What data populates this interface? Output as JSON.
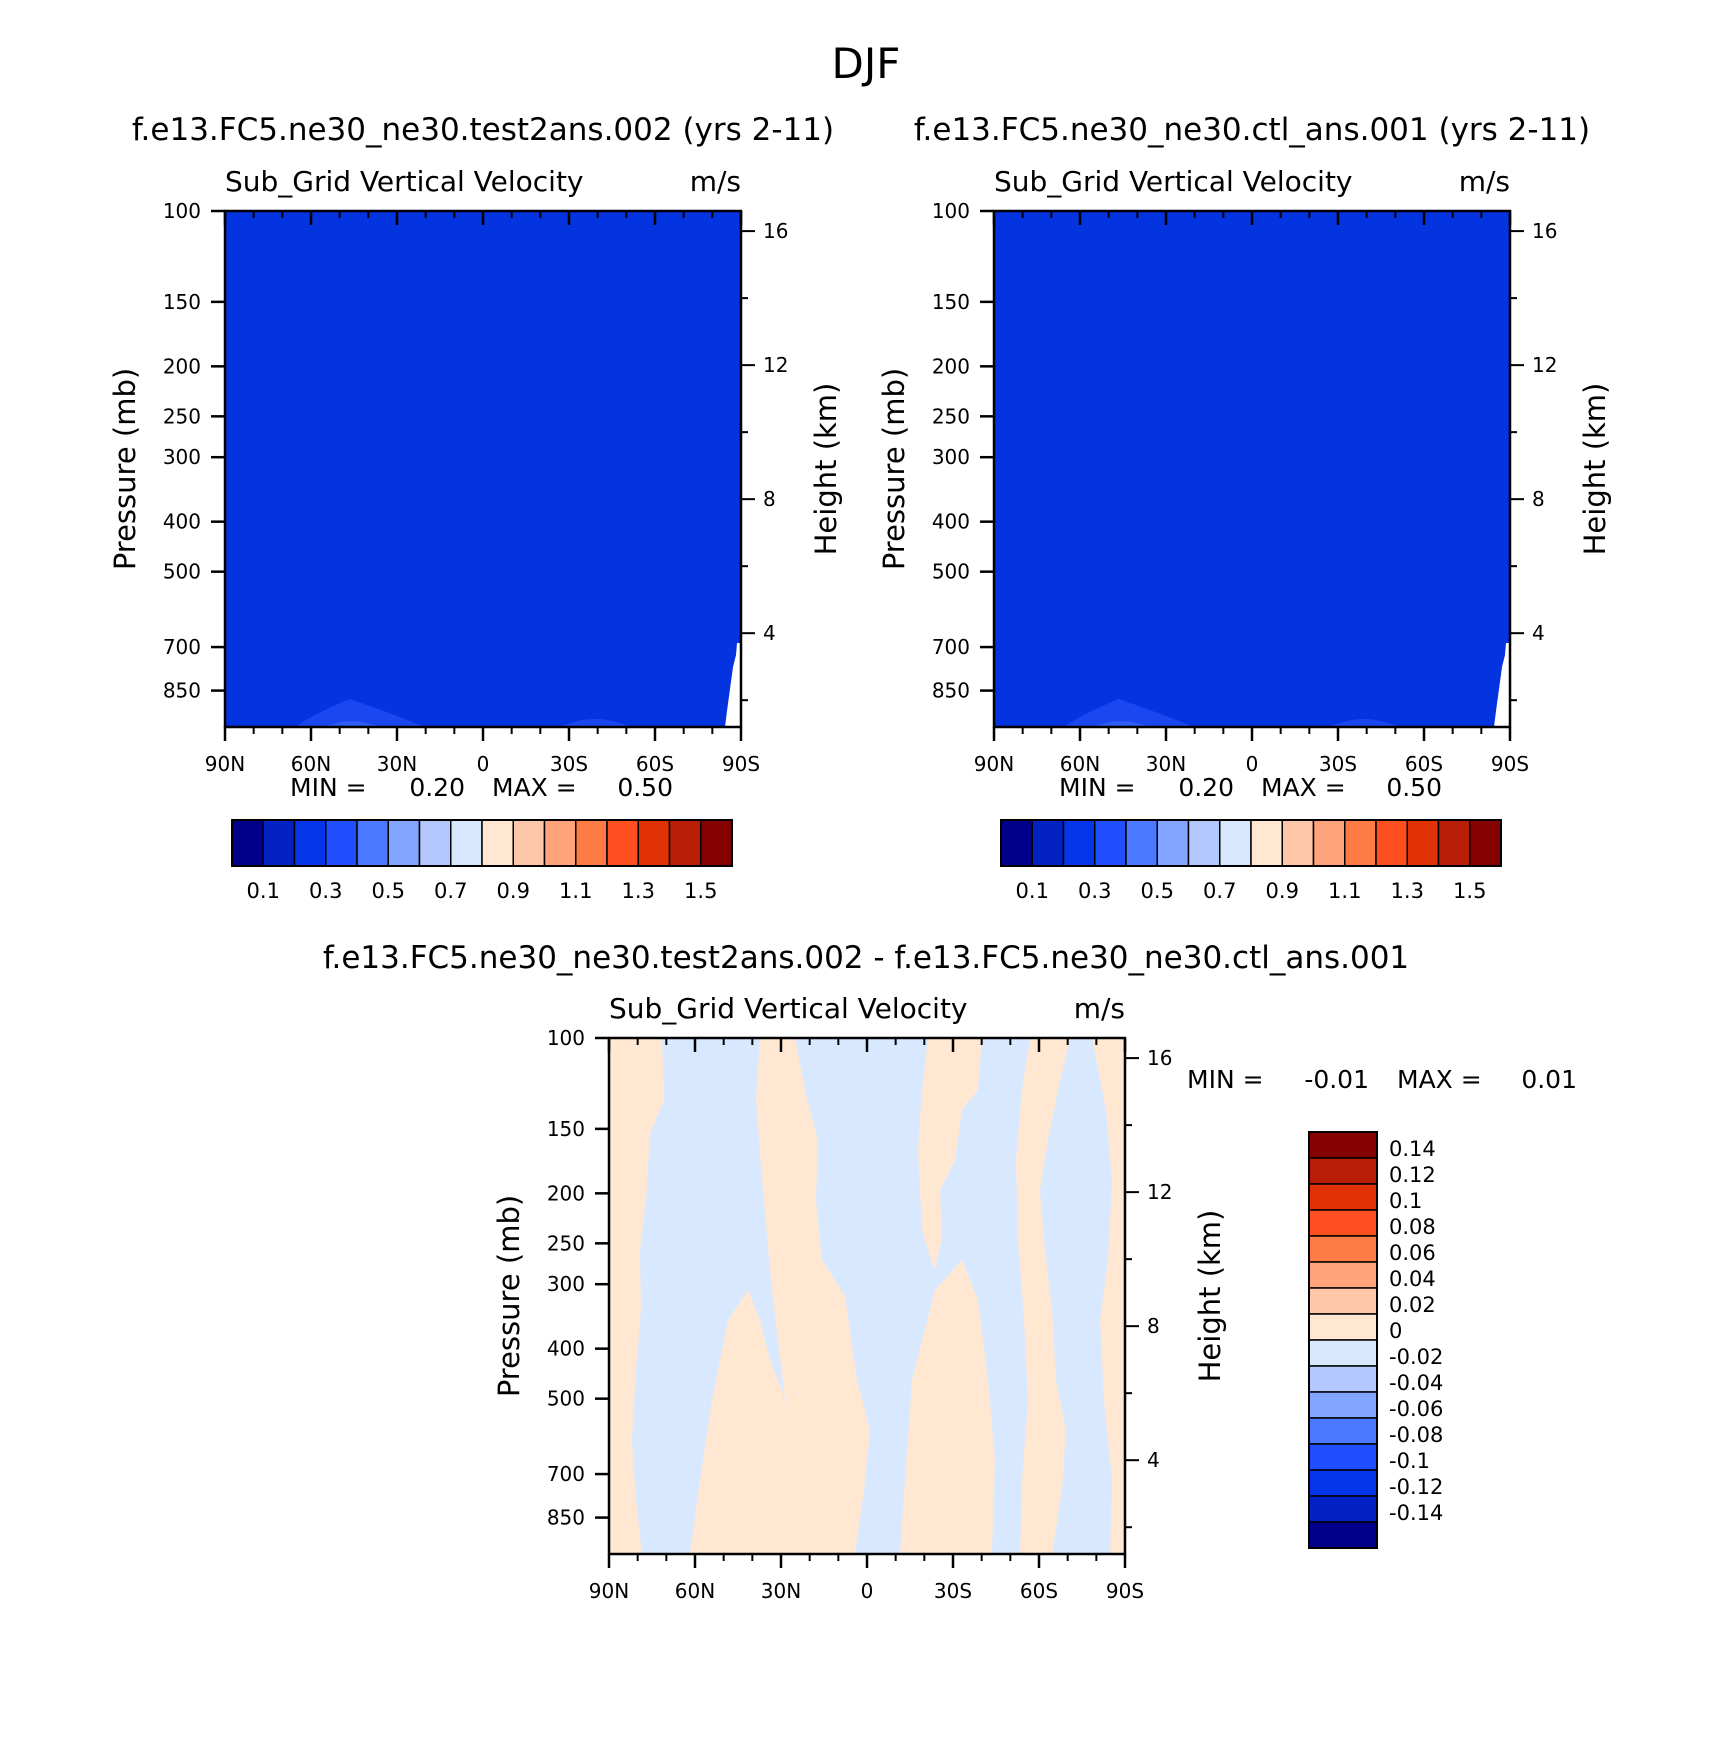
{
  "page_title": "DJF",
  "chart_data": [
    {
      "type": "heatmap",
      "panel": "test",
      "case_title": "f.e13.FC5.ne30_ne30.test2ans.002 (yrs 2-11)",
      "variable": "Sub_Grid Vertical Velocity",
      "units": "m/s",
      "ylabel": "Pressure (mb)",
      "y2label": "Height (km)",
      "xticks": [
        "90N",
        "60N",
        "30N",
        "0",
        "30S",
        "60S",
        "90S"
      ],
      "xtick_values": [
        90,
        60,
        30,
        0,
        -30,
        -60,
        -90
      ],
      "yticks": [
        "100",
        "150",
        "200",
        "250",
        "300",
        "400",
        "500",
        "700",
        "850"
      ],
      "ytick_values": [
        100,
        150,
        200,
        250,
        300,
        400,
        500,
        700,
        850
      ],
      "y2ticks": [
        "16",
        "12",
        "8",
        "4"
      ],
      "y2tick_values": [
        16,
        12,
        8,
        4
      ],
      "ylim": [
        100,
        1000
      ],
      "xlim": [
        90,
        -90
      ],
      "min_label": "MIN =",
      "min_value": "0.20",
      "max_label": "MAX =",
      "max_value": "0.50",
      "fill_color": "#0433E0",
      "levels": [
        "0.1",
        "0.3",
        "0.5",
        "0.7",
        "0.9",
        "1.1",
        "1.3",
        "1.5"
      ],
      "colorbar": [
        "#00008B",
        "#0222C4",
        "#0535E8",
        "#1F4FFF",
        "#4A79FF",
        "#83A4FF",
        "#B2C8FF",
        "#D8E9FF",
        "#FFE7D2",
        "#FFC7AA",
        "#FFA47A",
        "#FF7B45",
        "#FF4E1F",
        "#E03205",
        "#B81E06",
        "#850000"
      ]
    },
    {
      "type": "heatmap",
      "panel": "control",
      "case_title": "f.e13.FC5.ne30_ne30.ctl_ans.001 (yrs 2-11)",
      "variable": "Sub_Grid Vertical Velocity",
      "units": "m/s",
      "ylabel": "Pressure (mb)",
      "y2label": "Height (km)",
      "xticks": [
        "90N",
        "60N",
        "30N",
        "0",
        "30S",
        "60S",
        "90S"
      ],
      "xtick_values": [
        90,
        60,
        30,
        0,
        -30,
        -60,
        -90
      ],
      "yticks": [
        "100",
        "150",
        "200",
        "250",
        "300",
        "400",
        "500",
        "700",
        "850"
      ],
      "ytick_values": [
        100,
        150,
        200,
        250,
        300,
        400,
        500,
        700,
        850
      ],
      "y2ticks": [
        "16",
        "12",
        "8",
        "4"
      ],
      "y2tick_values": [
        16,
        12,
        8,
        4
      ],
      "ylim": [
        100,
        1000
      ],
      "xlim": [
        90,
        -90
      ],
      "min_label": "MIN =",
      "min_value": "0.20",
      "max_label": "MAX =",
      "max_value": "0.50",
      "fill_color": "#0433E0",
      "levels": [
        "0.1",
        "0.3",
        "0.5",
        "0.7",
        "0.9",
        "1.1",
        "1.3",
        "1.5"
      ],
      "colorbar": [
        "#00008B",
        "#0222C4",
        "#0535E8",
        "#1F4FFF",
        "#4A79FF",
        "#83A4FF",
        "#B2C8FF",
        "#D8E9FF",
        "#FFE7D2",
        "#FFC7AA",
        "#FFA47A",
        "#FF7B45",
        "#FF4E1F",
        "#E03205",
        "#B81E06",
        "#850000"
      ]
    },
    {
      "type": "heatmap",
      "panel": "difference",
      "case_title": "f.e13.FC5.ne30_ne30.test2ans.002 - f.e13.FC5.ne30_ne30.ctl_ans.001",
      "variable": "Sub_Grid Vertical Velocity",
      "units": "m/s",
      "ylabel": "Pressure (mb)",
      "y2label": "Height (km)",
      "xticks": [
        "90N",
        "60N",
        "30N",
        "0",
        "30S",
        "60S",
        "90S"
      ],
      "xtick_values": [
        90,
        60,
        30,
        0,
        -30,
        -60,
        -90
      ],
      "yticks": [
        "100",
        "150",
        "200",
        "250",
        "300",
        "400",
        "500",
        "700",
        "850"
      ],
      "ytick_values": [
        100,
        150,
        200,
        250,
        300,
        400,
        500,
        700,
        850
      ],
      "y2ticks": [
        "16",
        "12",
        "8",
        "4"
      ],
      "y2tick_values": [
        16,
        12,
        8,
        4
      ],
      "ylim": [
        100,
        1000
      ],
      "xlim": [
        90,
        -90
      ],
      "min_label": "MIN =",
      "min_value": "-0.01",
      "max_label": "MAX =",
      "max_value": "0.01",
      "positive_color": "#FFE7D2",
      "negative_color": "#D8E9FF",
      "levels": [
        "0.14",
        "0.12",
        "0.1",
        "0.08",
        "0.06",
        "0.04",
        "0.02",
        "0",
        "-0.02",
        "-0.04",
        "-0.06",
        "-0.08",
        "-0.1",
        "-0.12",
        "-0.14"
      ],
      "colorbar": [
        "#850000",
        "#B81E06",
        "#E03205",
        "#FF4E1F",
        "#FF7B45",
        "#FFA47A",
        "#FFC7AA",
        "#FFE7D2",
        "#D8E9FF",
        "#B2C8FF",
        "#83A4FF",
        "#4A79FF",
        "#1F4FFF",
        "#0535E8",
        "#0222C4",
        "#00008B"
      ]
    }
  ]
}
